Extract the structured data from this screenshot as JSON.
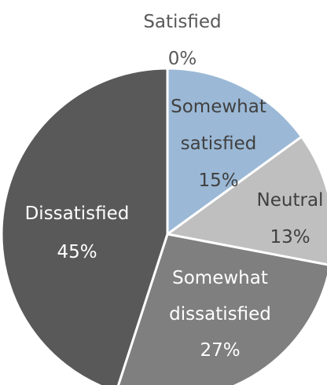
{
  "chart_data": {
    "type": "pie",
    "start_angle_deg": 0,
    "direction": "clockwise",
    "slices": [
      {
        "name": "Satisfied",
        "value": 0,
        "label": "0%",
        "color": "#9bb9d6",
        "label_color": "#595959"
      },
      {
        "name": "Somewhat satisfied",
        "value": 15,
        "label": "15%",
        "color": "#9bb9d6",
        "label_color": "#404040"
      },
      {
        "name": "Neutral",
        "value": 13,
        "label": "13%",
        "color": "#bfbfbf",
        "label_color": "#404040"
      },
      {
        "name": "Somewhat dissatisfied",
        "value": 27,
        "label": "27%",
        "color": "#7f7f7f",
        "label_color": "#ffffff"
      },
      {
        "name": "Dissatisfied",
        "value": 45,
        "label": "45%",
        "color": "#595959",
        "label_color": "#ffffff"
      }
    ],
    "legend": "none",
    "data_labels": "category name and percentage"
  }
}
